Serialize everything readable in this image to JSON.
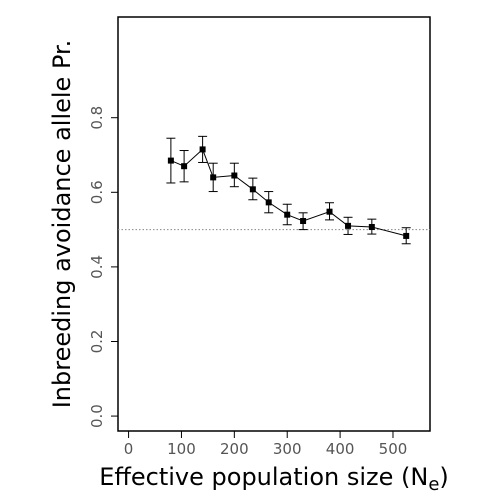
{
  "chart_data": {
    "type": "line",
    "title": "",
    "xlabel": "Effective population size (N",
    "xlabel_subscript": "e",
    "xlabel_close": ")",
    "ylabel": "Inbreeding avoidance allele Pr.",
    "xlim": [
      -20,
      570
    ],
    "ylim": [
      -0.04,
      1.07
    ],
    "x_ticks": [
      0,
      100,
      200,
      300,
      400,
      500
    ],
    "x_tick_labels": [
      "0",
      "100",
      "200",
      "300",
      "400",
      "500"
    ],
    "y_ticks": [
      0.0,
      0.2,
      0.4,
      0.6,
      0.8
    ],
    "y_tick_labels": [
      "0.0",
      "0.2",
      "0.4",
      "0.6",
      "0.8"
    ],
    "grid": false,
    "reference_line": {
      "y": 0.5,
      "style": "dotted"
    },
    "series": [
      {
        "points": [
          {
            "x": 80,
            "y": 0.685,
            "lower": 0.625,
            "upper": 0.745
          },
          {
            "x": 105,
            "y": 0.67,
            "lower": 0.628,
            "upper": 0.712
          },
          {
            "x": 140,
            "y": 0.715,
            "lower": 0.68,
            "upper": 0.75
          },
          {
            "x": 160,
            "y": 0.64,
            "lower": 0.602,
            "upper": 0.678
          },
          {
            "x": 200,
            "y": 0.645,
            "lower": 0.615,
            "upper": 0.678
          },
          {
            "x": 235,
            "y": 0.608,
            "lower": 0.58,
            "upper": 0.638
          },
          {
            "x": 265,
            "y": 0.573,
            "lower": 0.545,
            "upper": 0.602
          },
          {
            "x": 300,
            "y": 0.54,
            "lower": 0.513,
            "upper": 0.568
          },
          {
            "x": 330,
            "y": 0.523,
            "lower": 0.5,
            "upper": 0.545
          },
          {
            "x": 380,
            "y": 0.548,
            "lower": 0.526,
            "upper": 0.572
          },
          {
            "x": 415,
            "y": 0.51,
            "lower": 0.487,
            "upper": 0.533
          },
          {
            "x": 460,
            "y": 0.507,
            "lower": 0.488,
            "upper": 0.528
          },
          {
            "x": 525,
            "y": 0.483,
            "lower": 0.462,
            "upper": 0.505
          }
        ]
      }
    ]
  }
}
